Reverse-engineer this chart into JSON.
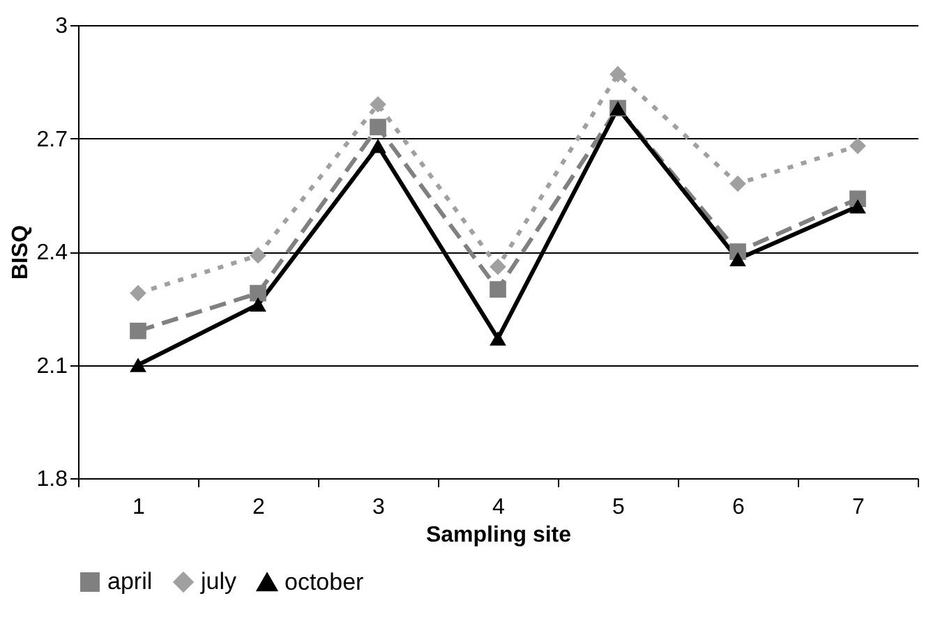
{
  "chart_data": {
    "type": "line",
    "xlabel": "Sampling site",
    "ylabel": "BISQ",
    "categories": [
      "1",
      "2",
      "3",
      "4",
      "5",
      "6",
      "7"
    ],
    "series": [
      {
        "name": "april",
        "color": "#808080",
        "marker": "square",
        "line_style": "dashed",
        "values": [
          2.19,
          2.29,
          2.73,
          2.3,
          2.78,
          2.4,
          2.54
        ]
      },
      {
        "name": "july",
        "color": "#a0a0a0",
        "marker": "diamond",
        "line_style": "dotted",
        "values": [
          2.29,
          2.39,
          2.79,
          2.36,
          2.87,
          2.58,
          2.68
        ]
      },
      {
        "name": "october",
        "color": "#000000",
        "marker": "triangle",
        "line_style": "solid",
        "values": [
          2.1,
          2.26,
          2.68,
          2.17,
          2.78,
          2.38,
          2.52
        ]
      }
    ],
    "ylim": [
      1.8,
      3
    ],
    "yticks": [
      1.8,
      2.1,
      2.4,
      2.7,
      {
        "value": 3,
        "label": "3"
      }
    ],
    "grid": "y",
    "legend": "bottom"
  }
}
